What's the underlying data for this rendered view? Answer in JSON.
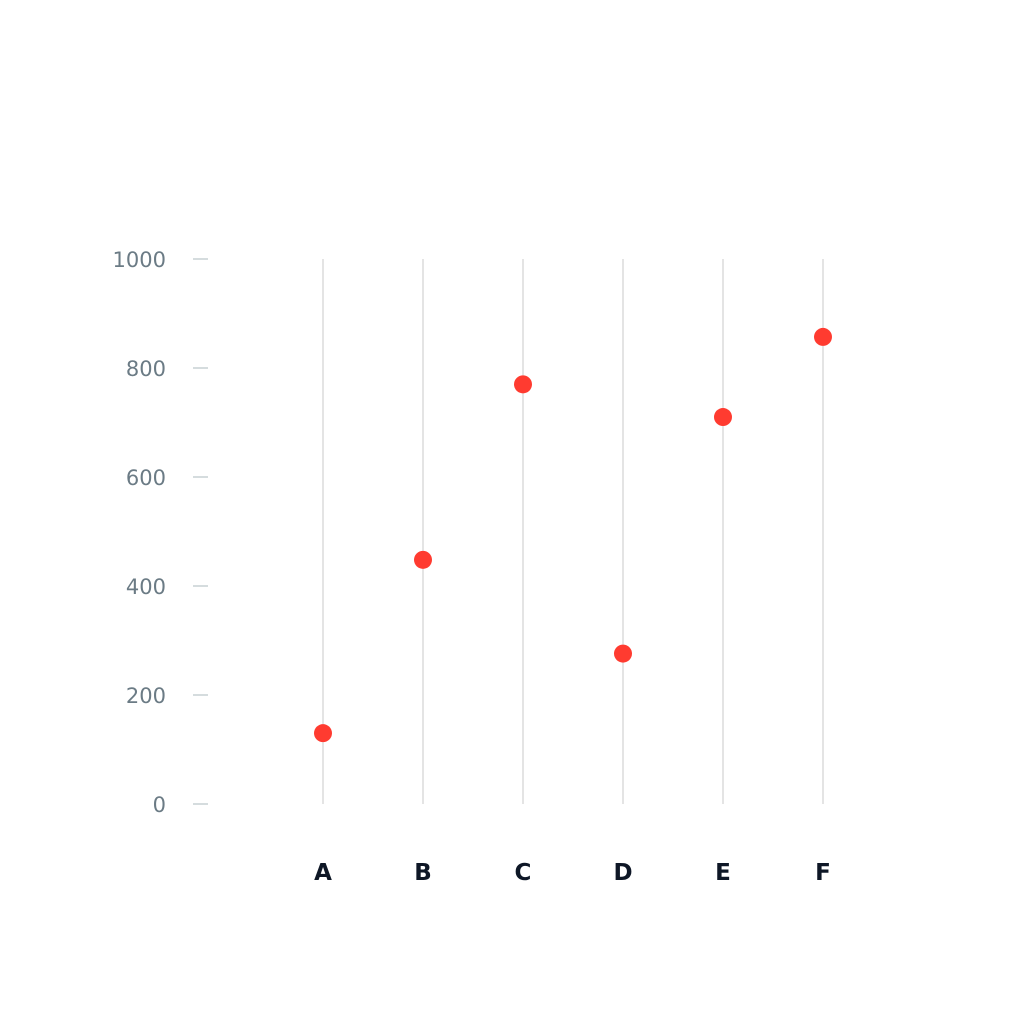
{
  "chart_data": {
    "type": "scatter",
    "categories": [
      "A",
      "B",
      "C",
      "D",
      "E",
      "F"
    ],
    "values": [
      130,
      448,
      770,
      276,
      710,
      857
    ],
    "ylim": [
      0,
      1000
    ],
    "yticks": [
      0,
      200,
      400,
      600,
      800,
      1000
    ],
    "title": "",
    "xlabel": "",
    "ylabel": "",
    "grid": "vertical",
    "point_color": "#ff3b30"
  }
}
